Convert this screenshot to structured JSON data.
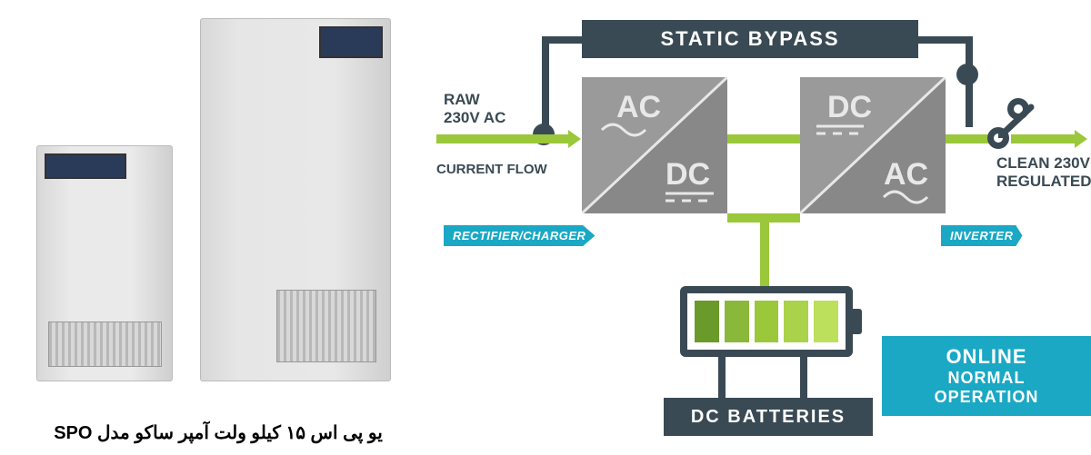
{
  "product": {
    "caption": "یو پی اس ۱۵ کیلو ولت آمپر ساکو مدل SPO"
  },
  "diagram": {
    "bypass_label": "STATIC BYPASS",
    "input": {
      "line1": "RAW",
      "line2": "230V AC",
      "line3": "CURRENT FLOW"
    },
    "output": {
      "line1": "CLEAN 230V",
      "line2": "REGULATED"
    },
    "rectifier": {
      "top": "AC",
      "bottom": "DC",
      "tag": "RECTIFIER/CHARGER"
    },
    "inverter": {
      "top": "DC",
      "bottom": "AC",
      "tag": "INVERTER"
    },
    "battery": {
      "cells": [
        "#6a9a2a",
        "#8ab83a",
        "#9ac83a",
        "#aad24a",
        "#bde05c"
      ],
      "label": "DC BATTERIES"
    },
    "mode": {
      "line1": "ONLINE",
      "line2": "NORMAL OPERATION"
    },
    "colors": {
      "flow": "#9ac83a",
      "structure": "#3a4a54",
      "accent": "#1aa8c4",
      "box": "#888888",
      "boxtext": "#e8e8e8"
    }
  }
}
